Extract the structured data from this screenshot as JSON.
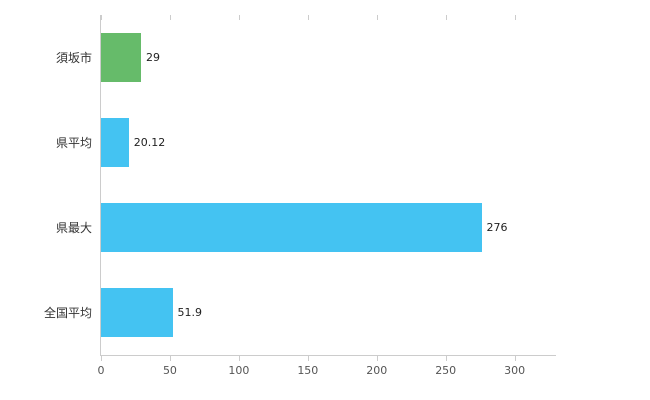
{
  "chart_data": {
    "type": "bar",
    "orientation": "horizontal",
    "title": "",
    "xlabel": "",
    "ylabel": "",
    "categories": [
      "須坂市",
      "県平均",
      "県最大",
      "全国平均"
    ],
    "values": [
      29,
      20.12,
      276,
      51.9
    ],
    "value_labels": [
      "29",
      "20.12",
      "276",
      "51.9"
    ],
    "bar_colors": [
      "#66bb6a",
      "#44c3f2",
      "#44c3f2",
      "#44c3f2"
    ],
    "xlim": [
      0,
      330
    ],
    "x_ticks": [
      0,
      50,
      100,
      150,
      200,
      250,
      300
    ],
    "grid": false,
    "legend": "none",
    "axis_color": "#cccccc",
    "label_color": "#333333",
    "tick_label_color": "#555555",
    "background_color": "#ffffff"
  }
}
